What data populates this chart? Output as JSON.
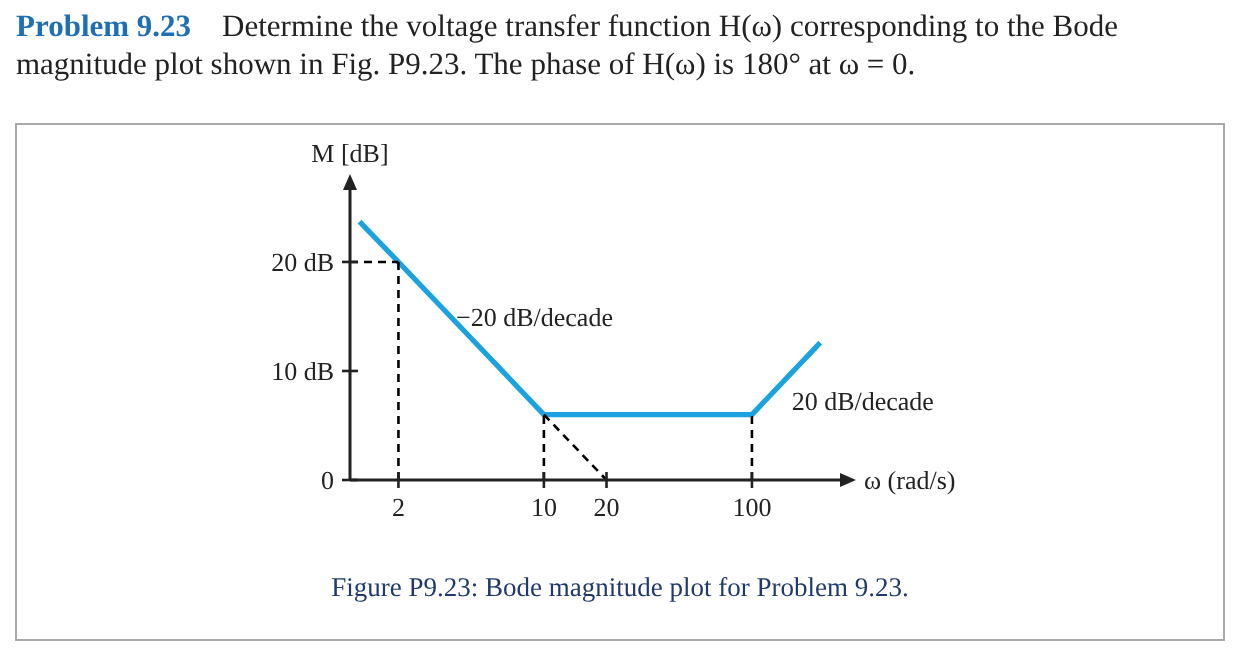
{
  "chart_data": {
    "type": "line",
    "title": "Problem 9.23",
    "subtitle": "Determine the voltage transfer function H(ω) corresponding to the Bode magnitude plot shown in Fig. P9.23. The phase of H(ω) is 180° at ω = 0.",
    "xlabel": "ω (rad/s)",
    "ylabel": "M [dB]",
    "log": "x",
    "xlim": [
      1.17,
      265
    ],
    "ylim": [
      0,
      26.6
    ],
    "xticks": [
      2,
      10,
      20,
      100
    ],
    "yticks": [
      0,
      {
        "value": 10,
        "label": "10 dB"
      },
      {
        "value": 20,
        "label": "20 dB"
      }
    ],
    "series": [
      {
        "color": "#1aa3e0",
        "line_style": "solid",
        "x": [
          1.3,
          2,
          10,
          100,
          213
        ],
        "values": [
          23.7,
          20,
          6,
          6,
          12.6
        ]
      },
      {
        "color": "#000000",
        "line_style": "dashed",
        "x": [
          1.17,
          2
        ],
        "values": [
          20,
          20
        ]
      },
      {
        "color": "#000000",
        "line_style": "dashed",
        "x": [
          2,
          2
        ],
        "values": [
          0,
          20
        ]
      },
      {
        "color": "#000000",
        "line_style": "dashed",
        "x": [
          10,
          10
        ],
        "values": [
          0,
          6
        ]
      },
      {
        "color": "#000000",
        "line_style": "dashed",
        "x": [
          100,
          100
        ],
        "values": [
          0,
          6
        ]
      },
      {
        "color": "#000000",
        "line_style": "dashed",
        "x": [
          10,
          20
        ],
        "values": [
          6,
          0
        ]
      }
    ],
    "annotations": [
      {
        "text": "−20 dB/decade",
        "x": 3.17,
        "y": 16
      },
      {
        "text": "20 dB/decade",
        "x": 130,
        "y": 8.3
      },
      "Figure P9.23: Bode magnitude plot for Problem 9.23."
    ]
  }
}
